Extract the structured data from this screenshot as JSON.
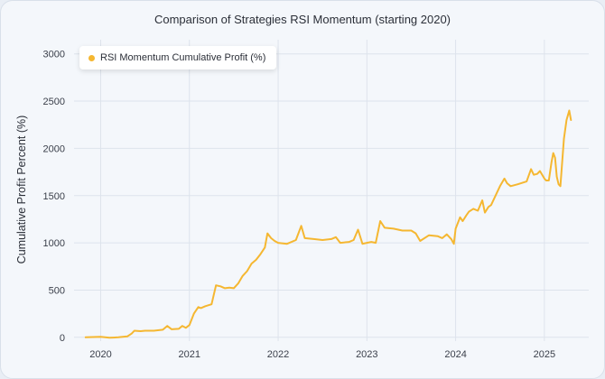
{
  "chart_data": {
    "type": "line",
    "title": "Comparison of Strategies RSI Momentum (starting 2020)",
    "xlabel": "",
    "ylabel": "Cumulative Profit Percent (%)",
    "xlim": [
      2019.7,
      2025.5
    ],
    "ylim": [
      -40,
      3150
    ],
    "yticks": [
      0,
      500,
      1000,
      1500,
      2000,
      2500,
      3000
    ],
    "xticks": [
      2020,
      2021,
      2022,
      2023,
      2024,
      2025
    ],
    "grid": true,
    "legend_position": "top-left",
    "series": [
      {
        "name": "RSI Momentum Cumulative Profit (%)",
        "color": "#f5b731",
        "x": [
          2019.83,
          2020.0,
          2020.1,
          2020.2,
          2020.3,
          2020.35,
          2020.38,
          2020.45,
          2020.5,
          2020.6,
          2020.7,
          2020.75,
          2020.8,
          2020.88,
          2020.92,
          2020.96,
          2021.0,
          2021.05,
          2021.1,
          2021.13,
          2021.18,
          2021.25,
          2021.3,
          2021.35,
          2021.4,
          2021.45,
          2021.5,
          2021.55,
          2021.6,
          2021.65,
          2021.7,
          2021.75,
          2021.8,
          2021.85,
          2021.88,
          2021.92,
          2021.96,
          2022.0,
          2022.1,
          2022.2,
          2022.26,
          2022.3,
          2022.4,
          2022.5,
          2022.6,
          2022.65,
          2022.7,
          2022.8,
          2022.85,
          2022.9,
          2022.95,
          2023.0,
          2023.05,
          2023.1,
          2023.15,
          2023.2,
          2023.3,
          2023.4,
          2023.5,
          2023.55,
          2023.6,
          2023.7,
          2023.8,
          2023.85,
          2023.9,
          2023.95,
          2023.98,
          2024.0,
          2024.05,
          2024.08,
          2024.12,
          2024.15,
          2024.2,
          2024.25,
          2024.3,
          2024.33,
          2024.37,
          2024.4,
          2024.5,
          2024.55,
          2024.58,
          2024.62,
          2024.7,
          2024.8,
          2024.85,
          2024.88,
          2024.92,
          2024.95,
          2025.0,
          2025.02,
          2025.05,
          2025.08,
          2025.1,
          2025.12,
          2025.14,
          2025.16,
          2025.18,
          2025.22,
          2025.25,
          2025.28,
          2025.3
        ],
        "y": [
          0,
          5,
          -5,
          0,
          10,
          40,
          70,
          65,
          70,
          70,
          80,
          120,
          85,
          90,
          120,
          100,
          130,
          250,
          320,
          310,
          330,
          350,
          550,
          540,
          520,
          525,
          520,
          570,
          650,
          700,
          780,
          820,
          880,
          950,
          1100,
          1050,
          1020,
          1000,
          990,
          1030,
          1180,
          1050,
          1040,
          1030,
          1040,
          1060,
          1000,
          1010,
          1030,
          1140,
          990,
          1000,
          1010,
          1000,
          1230,
          1160,
          1150,
          1130,
          1130,
          1100,
          1020,
          1080,
          1070,
          1050,
          1090,
          1040,
          990,
          1150,
          1270,
          1230,
          1290,
          1330,
          1360,
          1340,
          1450,
          1320,
          1380,
          1400,
          1600,
          1680,
          1630,
          1600,
          1620,
          1650,
          1780,
          1720,
          1730,
          1760,
          1680,
          1660,
          1660,
          1850,
          1950,
          1900,
          1700,
          1620,
          1600,
          2100,
          2300,
          2400,
          2300
        ]
      }
    ]
  }
}
